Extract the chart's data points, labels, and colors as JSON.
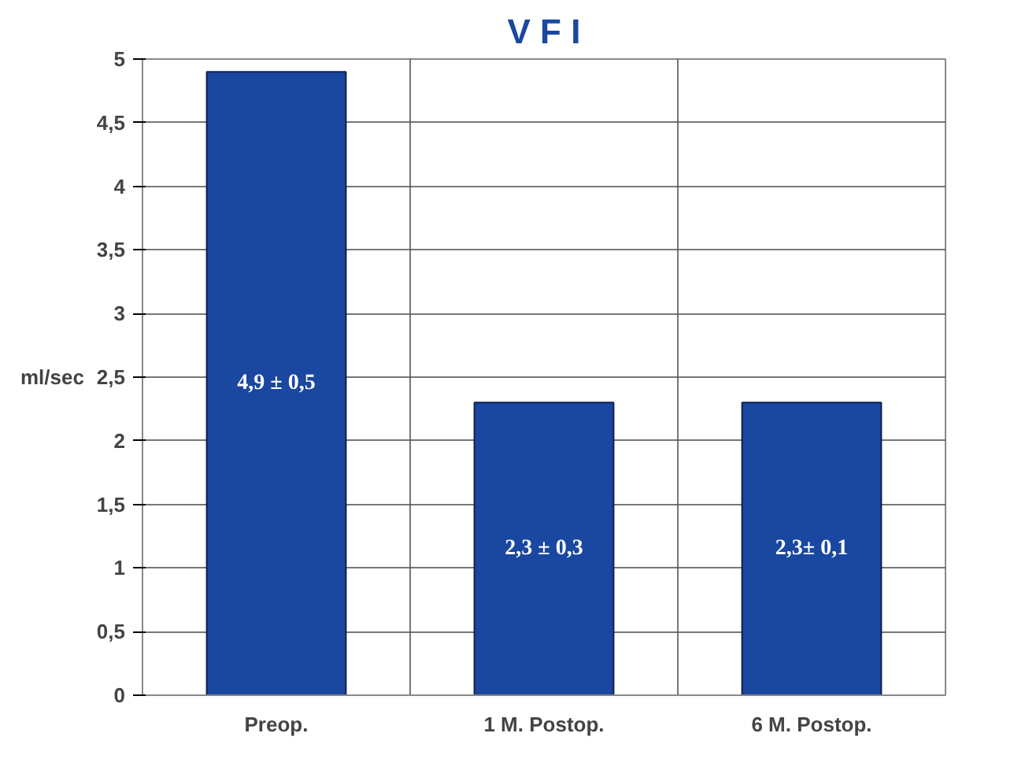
{
  "chart_data": {
    "type": "bar",
    "title": "V F I",
    "ylabel": "ml/sec",
    "categories": [
      "Preop.",
      "1 M. Postop.",
      "6 M. Postop."
    ],
    "values": [
      4.9,
      2.3,
      2.3
    ],
    "color": "#1a47a0",
    "value_labels": [
      "4,9 ± 0,5",
      "2,3 ± 0,3",
      "2,3± 0,1"
    ],
    "ylim": [
      0,
      5
    ],
    "yticks": [
      0,
      {
        "value": 0.5,
        "label": "0,5"
      },
      1,
      {
        "value": 1.5,
        "label": "1,5"
      },
      2,
      {
        "value": 2.5,
        "label": "2,5"
      },
      3,
      {
        "value": 3.5,
        "label": "3,5"
      },
      4,
      {
        "value": 4.5,
        "label": "4,5"
      },
      5
    ],
    "grid": true
  }
}
